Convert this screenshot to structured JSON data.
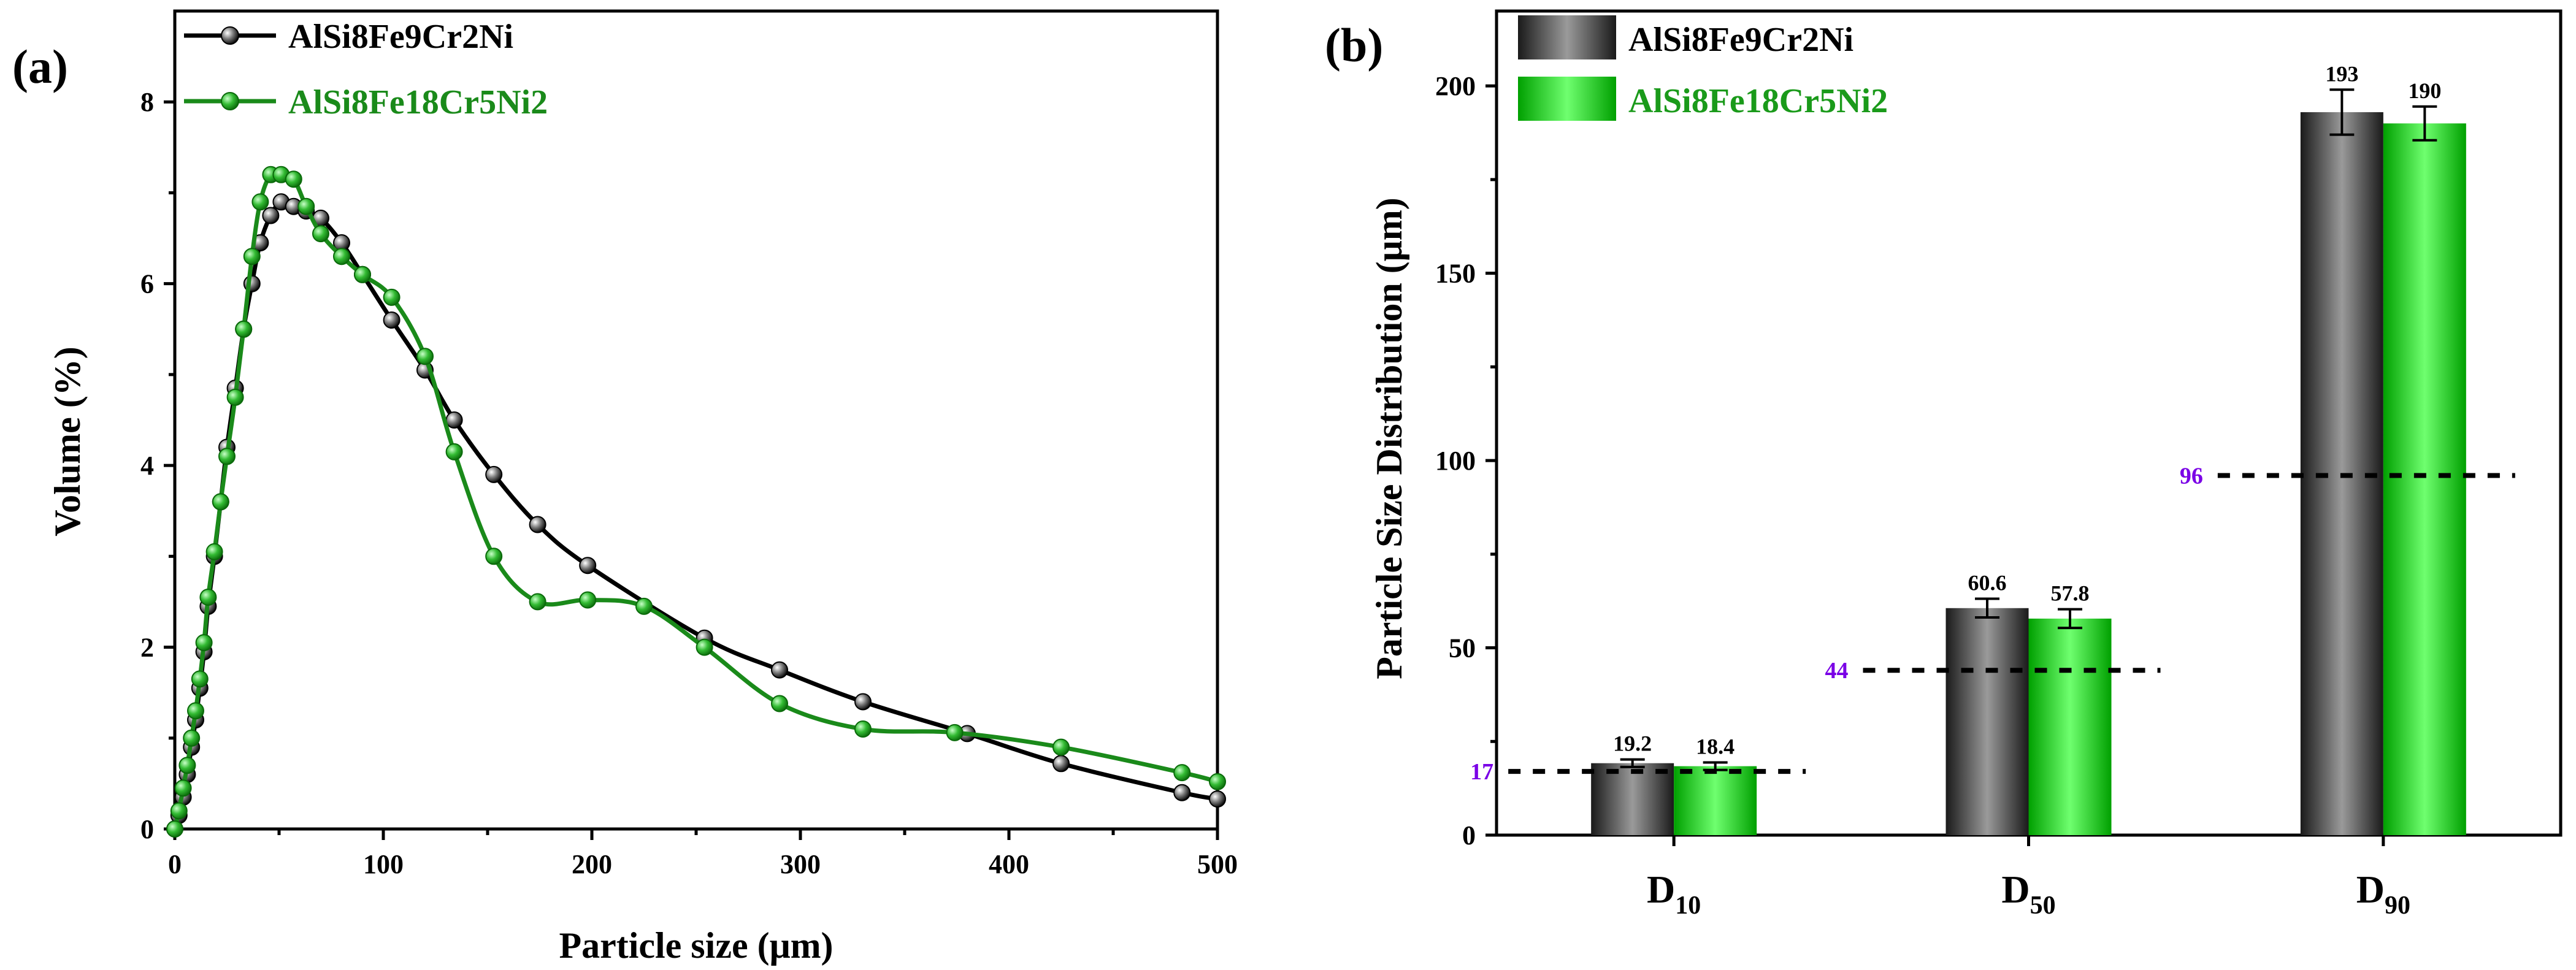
{
  "chart_data": [
    {
      "panel": "(a)",
      "type": "line",
      "xlabel": "Particle size (μm)",
      "ylabel": "Volume (%)",
      "xlim": [
        0,
        500
      ],
      "ylim": [
        0,
        9
      ],
      "xticks": [
        0,
        100,
        200,
        300,
        400,
        500
      ],
      "yticks": [
        0,
        2,
        4,
        6,
        8
      ],
      "legend_position": "top-left",
      "series": [
        {
          "name": "AlSi8Fe9Cr2Ni",
          "color": "#000000",
          "x": [
            0,
            2,
            4,
            6,
            8,
            10,
            12,
            14,
            16,
            19,
            22,
            25,
            29,
            33,
            37,
            41,
            46,
            51,
            57,
            63,
            70,
            80,
            90,
            104,
            120,
            134,
            153,
            174,
            198,
            254,
            290,
            330,
            380,
            425,
            483,
            500
          ],
          "y": [
            0,
            0.15,
            0.35,
            0.6,
            0.9,
            1.2,
            1.55,
            1.95,
            2.45,
            3.0,
            3.6,
            4.2,
            4.85,
            5.5,
            6.0,
            6.45,
            6.75,
            6.9,
            6.85,
            6.8,
            6.72,
            6.45,
            6.1,
            5.6,
            5.05,
            4.5,
            3.9,
            3.35,
            2.9,
            2.1,
            1.75,
            1.4,
            1.05,
            0.72,
            0.4,
            0.33
          ]
        },
        {
          "name": "AlSi8Fe18Cr5Ni2",
          "color": "#1a8a1a",
          "x": [
            0,
            2,
            4,
            6,
            8,
            10,
            12,
            14,
            16,
            19,
            22,
            25,
            29,
            33,
            37,
            41,
            46,
            51,
            57,
            63,
            70,
            80,
            90,
            104,
            120,
            134,
            153,
            174,
            198,
            225,
            254,
            290,
            330,
            374,
            425,
            483,
            500
          ],
          "y": [
            0,
            0.2,
            0.45,
            0.7,
            1.0,
            1.3,
            1.65,
            2.05,
            2.55,
            3.05,
            3.6,
            4.1,
            4.75,
            5.5,
            6.3,
            6.9,
            7.2,
            7.2,
            7.15,
            6.85,
            6.55,
            6.3,
            6.1,
            5.85,
            5.2,
            4.15,
            3.0,
            2.5,
            2.52,
            2.45,
            2.0,
            1.38,
            1.1,
            1.06,
            0.9,
            0.62,
            0.52
          ]
        }
      ]
    },
    {
      "panel": "(b)",
      "type": "bar",
      "ylabel": "Particle Size Distribution (μm)",
      "ylim": [
        0,
        220
      ],
      "yticks": [
        0,
        50,
        100,
        150,
        200
      ],
      "legend_position": "top-left",
      "categories": [
        {
          "main": "D",
          "sub": "10"
        },
        {
          "main": "D",
          "sub": "50"
        },
        {
          "main": "D",
          "sub": "90"
        }
      ],
      "series": [
        {
          "name": "AlSi8Fe9Cr2Ni",
          "color": "#3a3a3a",
          "values": [
            19.2,
            60.6,
            193
          ],
          "labels": [
            "19.2",
            "60.6",
            "193"
          ],
          "errors": [
            1.0,
            2.5,
            6.0
          ]
        },
        {
          "name": "AlSi8Fe18Cr5Ni2",
          "color": "#00cc00",
          "values": [
            18.4,
            57.8,
            190
          ],
          "labels": [
            "18.4",
            "57.8",
            "190"
          ],
          "errors": [
            1.0,
            2.5,
            4.5
          ]
        }
      ],
      "reference_lines": [
        {
          "value": 17,
          "label": "17"
        },
        {
          "value": 44,
          "label": "44"
        },
        {
          "value": 96,
          "label": "96"
        }
      ],
      "reference_label_color": "#7a00e6"
    }
  ]
}
